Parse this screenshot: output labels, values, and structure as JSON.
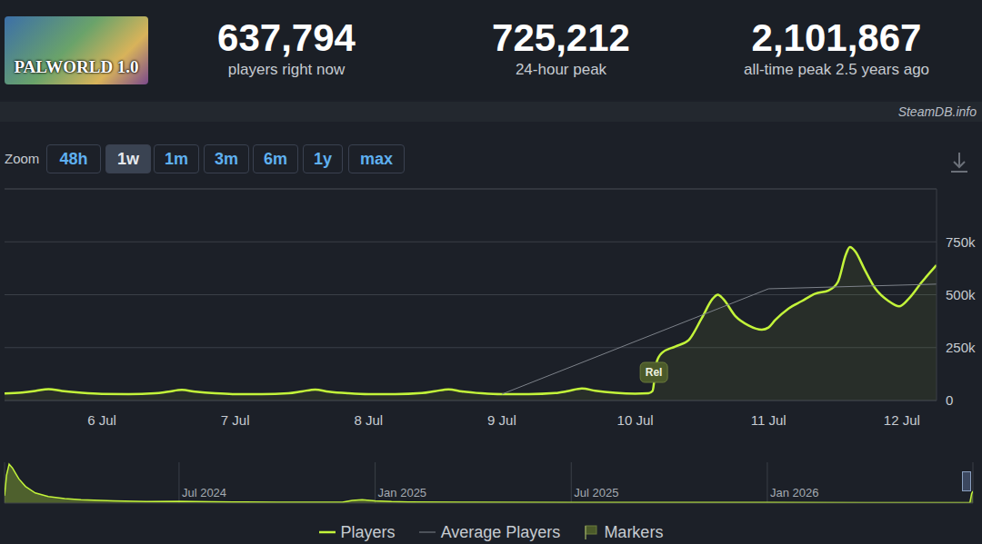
{
  "header": {
    "logo": "PALWORLD 1.0",
    "stats": [
      {
        "value": "637,794",
        "label": "players right now"
      },
      {
        "value": "725,212",
        "label": "24-hour peak"
      },
      {
        "value": "2,101,867",
        "label": "all-time peak 2.5 years ago"
      }
    ]
  },
  "source": "SteamDB.info",
  "zoom": {
    "label": "Zoom",
    "options": [
      "48h",
      "1w",
      "1m",
      "3m",
      "6m",
      "1y",
      "max"
    ],
    "active": "1w"
  },
  "chart_data": [
    {
      "type": "line",
      "x": [
        5.27,
        5.4,
        5.5,
        5.6,
        5.7,
        5.85,
        6.0,
        6.2,
        6.4,
        6.5,
        6.6,
        6.7,
        6.85,
        7.0,
        7.2,
        7.4,
        7.5,
        7.6,
        7.7,
        7.85,
        8.0,
        8.2,
        8.4,
        8.5,
        8.6,
        8.7,
        8.85,
        9.0,
        9.2,
        9.4,
        9.5,
        9.6,
        9.7,
        9.85,
        10.0,
        10.1,
        10.13,
        10.16,
        10.2,
        10.3,
        10.4,
        10.5,
        10.58,
        10.62,
        10.66,
        10.75,
        10.85,
        10.95,
        11.0,
        11.05,
        11.15,
        11.25,
        11.35,
        11.45,
        11.52,
        11.58,
        11.61,
        11.65,
        11.72,
        11.8,
        11.9,
        11.98,
        12.05,
        12.15,
        12.26
      ],
      "xlim": [
        5.27,
        12.26
      ],
      "xticks": [
        {
          "value": 6,
          "label": "6 Jul"
        },
        {
          "value": 7,
          "label": "7 Jul"
        },
        {
          "value": 8,
          "label": "8 Jul"
        },
        {
          "value": 9,
          "label": "9 Jul"
        },
        {
          "value": 10,
          "label": "10 Jul"
        },
        {
          "value": 11,
          "label": "11 Jul"
        },
        {
          "value": 12,
          "label": "12 Jul"
        }
      ],
      "ylim": [
        0,
        1000000
      ],
      "yticks": [
        0,
        {
          "value": 250000,
          "label": "250k"
        },
        {
          "value": 500000,
          "label": "500k"
        },
        {
          "value": 750000,
          "label": "750k"
        }
      ],
      "grid": true,
      "legend": "bottom",
      "series": [
        {
          "name": "Players",
          "type": "area",
          "color": "#c3f43a",
          "values": [
            33000,
            38000,
            45000,
            54000,
            45000,
            36000,
            31000,
            30000,
            34000,
            42000,
            50000,
            42000,
            34000,
            30000,
            30000,
            34000,
            43000,
            52000,
            42000,
            34000,
            30000,
            30000,
            35000,
            44000,
            53000,
            43000,
            34000,
            30000,
            30000,
            35000,
            45000,
            57000,
            46000,
            36000,
            32000,
            34000,
            45000,
            180000,
            225000,
            255000,
            285000,
            390000,
            480000,
            500000,
            480000,
            400000,
            355000,
            335000,
            345000,
            380000,
            435000,
            470000,
            505000,
            520000,
            560000,
            690000,
            725000,
            705000,
            620000,
            530000,
            470000,
            445000,
            480000,
            560000,
            640000
          ]
        },
        {
          "name": "Average Players",
          "type": "line",
          "color": "#7d828a",
          "values": [
            null,
            null,
            null,
            null,
            null,
            null,
            null,
            null,
            null,
            null,
            null,
            null,
            null,
            null,
            null,
            null,
            null,
            null,
            null,
            null,
            null,
            null,
            null,
            null,
            null,
            null,
            null,
            30000,
            null,
            null,
            null,
            null,
            null,
            null,
            null,
            null,
            null,
            null,
            null,
            null,
            null,
            null,
            null,
            null,
            null,
            null,
            null,
            null,
            528000,
            null,
            null,
            null,
            null,
            null,
            null,
            null,
            null,
            null,
            null,
            null,
            null,
            null,
            null,
            null,
            550000
          ]
        }
      ],
      "annotations": [
        {
          "name": "Markers",
          "x": 10.14,
          "y": 133000,
          "label": "Rel",
          "color": "#4b5a2a"
        }
      ]
    },
    {
      "type": "area",
      "x": [
        0.66,
        0.72,
        0.8,
        0.9,
        1.0,
        1.1,
        1.3,
        1.6,
        2.0,
        2.5,
        3,
        4,
        5,
        6,
        7,
        8,
        9,
        10,
        11,
        11.3,
        11.6,
        12,
        12.5,
        13,
        15,
        18,
        21,
        24,
        27,
        29,
        30.2,
        30.25,
        30.29
      ],
      "values": [
        400000,
        1500000,
        2100000,
        1900000,
        1600000,
        1300000,
        900000,
        550000,
        350000,
        250000,
        180000,
        120000,
        90000,
        100000,
        70000,
        60000,
        50000,
        45000,
        50000,
        150000,
        180000,
        120000,
        80000,
        60000,
        45000,
        40000,
        35000,
        32000,
        30000,
        30000,
        30000,
        500000,
        640000
      ],
      "color": "#c3f43a",
      "xlim": [
        0.66,
        30.29
      ],
      "xticks": [
        {
          "value": 6,
          "label": "Jul 2024"
        },
        {
          "value": 12,
          "label": "Jan 2025"
        },
        {
          "value": 18,
          "label": "Jul 2025"
        },
        {
          "value": 24,
          "label": "Jan 2026"
        }
      ],
      "ylim": [
        0,
        2200000
      ],
      "grid": true,
      "tick_labels": "x"
    }
  ]
}
